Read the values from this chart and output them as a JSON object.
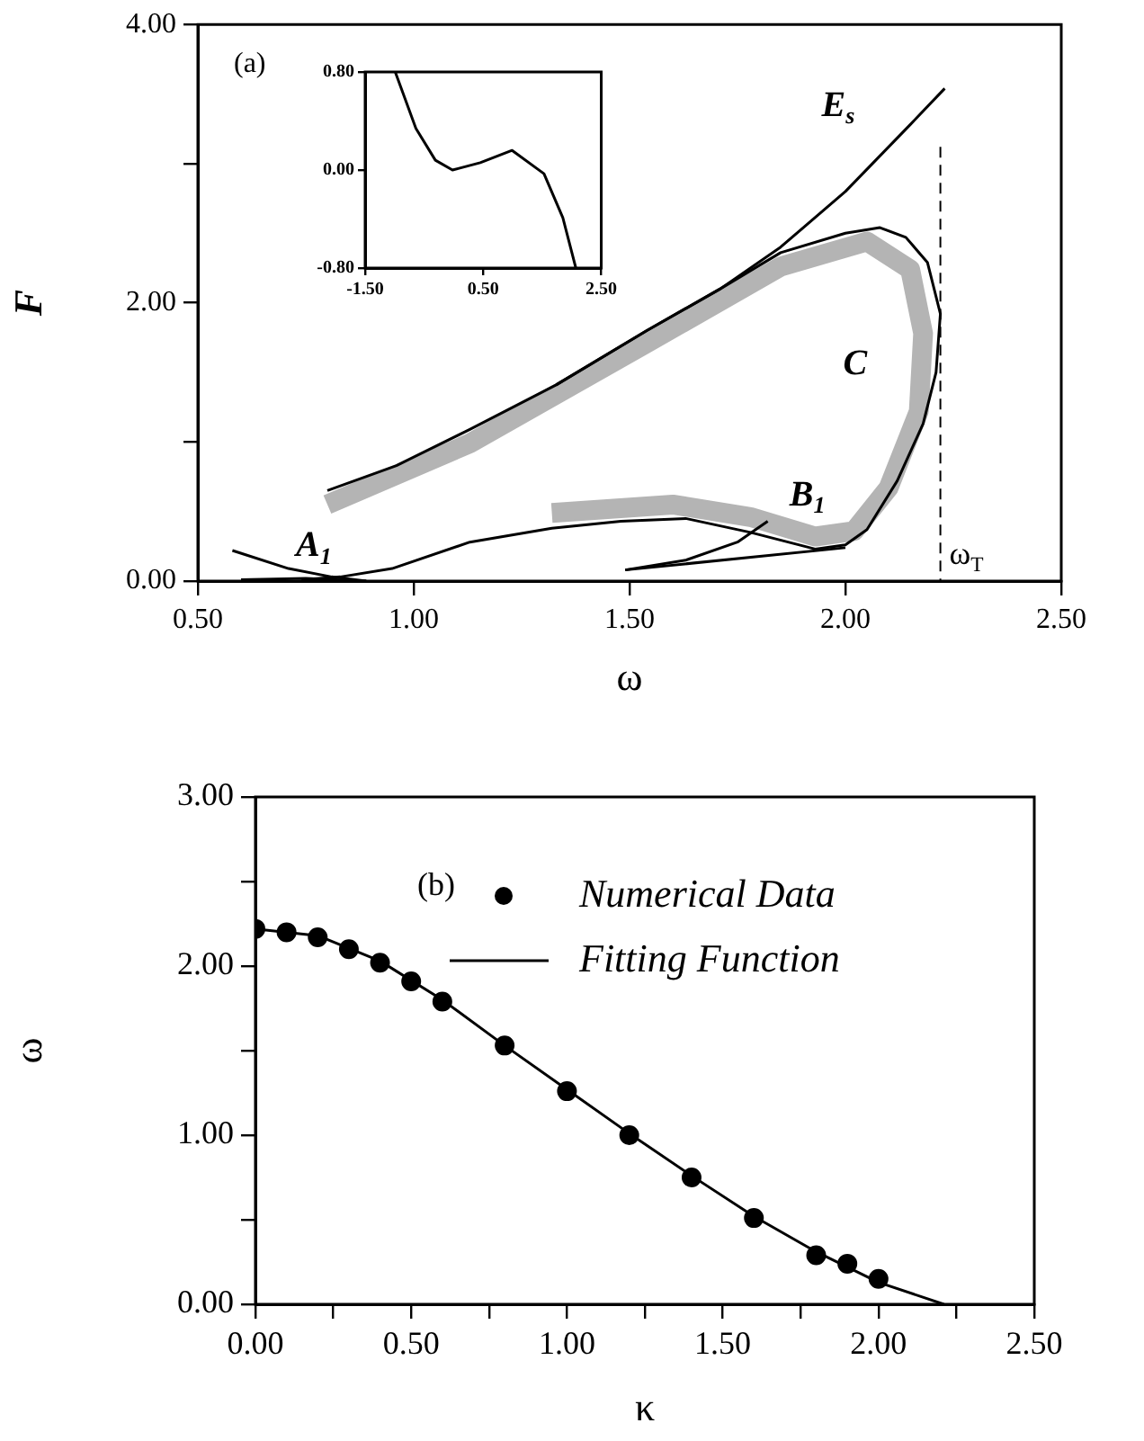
{
  "chart_data": [
    {
      "type": "line",
      "xlabel": "ω",
      "ylabel": "F",
      "xlim": [
        0.5,
        2.5
      ],
      "ylim": [
        0,
        4
      ],
      "grid": false,
      "line_style": "solid",
      "marker": "none",
      "xticks": [
        {
          "value": 0.5,
          "label": "0.50"
        },
        {
          "value": 1,
          "label": "1.00"
        },
        {
          "value": 1.5,
          "label": "1.50"
        },
        {
          "value": 2,
          "label": "2.00"
        },
        {
          "value": 2.5,
          "label": "2.50"
        }
      ],
      "yticks": [
        {
          "value": 0,
          "label": "0.00"
        },
        {
          "value": 1,
          "label": null
        },
        {
          "value": 2,
          "label": "2.00"
        },
        {
          "value": 3,
          "label": null
        },
        {
          "value": 4,
          "label": "4.00"
        }
      ],
      "series": [
        {
          "color": "#b4b4b4",
          "x": [
            0.8,
            1.13,
            1.54,
            1.85,
            2.05,
            2.15,
            2.18,
            2.17,
            2.1,
            2.02,
            1.93,
            1.78,
            1.6,
            1.32
          ],
          "values": [
            0.55,
            0.99,
            1.71,
            2.26,
            2.44,
            2.24,
            1.78,
            1.22,
            0.67,
            0.36,
            0.32,
            0.46,
            0.55,
            0.49
          ]
        },
        {
          "name": "C",
          "color": "#000000",
          "x": [
            0.8,
            0.96,
            1.13,
            1.33,
            1.54,
            1.71,
            1.85,
            2.0,
            2.08,
            2.14,
            2.19,
            2.22,
            2.21,
            2.18,
            2.12,
            2.05,
            2.0,
            1.93,
            1.78,
            1.63,
            1.48,
            1.32,
            1.13,
            0.95,
            0.83,
            0.74
          ],
          "values": [
            0.65,
            0.83,
            1.09,
            1.41,
            1.8,
            2.1,
            2.36,
            2.5,
            2.54,
            2.47,
            2.29,
            1.92,
            1.5,
            1.13,
            0.72,
            0.37,
            0.26,
            0.23,
            0.35,
            0.45,
            0.43,
            0.38,
            0.28,
            0.09,
            0.03,
            0.01
          ]
        },
        {
          "name": "E$_{s}$",
          "color": "#000000",
          "x": [
            1.33,
            1.54,
            1.71,
            1.85,
            2.0,
            2.15,
            2.23
          ],
          "values": [
            1.41,
            1.8,
            2.1,
            2.4,
            2.8,
            3.28,
            3.54
          ]
        },
        {
          "name": "A$_{1}$",
          "color": "#000000",
          "x": [
            0.58,
            0.71,
            0.81,
            0.89
          ],
          "values": [
            0.22,
            0.09,
            0.03,
            0.0
          ]
        },
        {
          "color": "#000000",
          "x": [
            0.6,
            0.75,
            0.89
          ],
          "values": [
            0.01,
            0.02,
            0.0
          ]
        },
        {
          "color": "#000000",
          "x": [
            1.49,
            2.0
          ],
          "values": [
            0.08,
            0.24
          ]
        },
        {
          "name": "B$_{1}$",
          "color": "#000000",
          "x": [
            1.49,
            1.63,
            1.75,
            1.82
          ],
          "values": [
            0.08,
            0.15,
            0.28,
            0.43
          ]
        }
      ],
      "ref_lines": [
        {
          "axis": "x",
          "value": 2.22,
          "label": "ω$_{T}$",
          "line_style": "dashed",
          "color": "#000000"
        }
      ],
      "annotations": [
        "(a)"
      ]
    },
    {
      "type": "line",
      "xlim": [
        -1.5,
        2.5
      ],
      "ylim": [
        -0.8,
        0.8
      ],
      "grid": false,
      "marker": "none",
      "line_style": "solid",
      "xticks": [
        {
          "value": -1.5,
          "label": "-1.50"
        },
        {
          "value": 0.5,
          "label": "0.50"
        },
        {
          "value": 2.5,
          "label": "2.50"
        }
      ],
      "yticks": [
        {
          "value": -0.8,
          "label": "-0.80"
        },
        {
          "value": 0,
          "label": "0.00"
        },
        {
          "value": 0.8,
          "label": "0.80"
        }
      ],
      "series": [
        {
          "color": "#000000",
          "x": [
            -0.99,
            -0.64,
            -0.31,
            -0.02,
            0.45,
            0.99,
            1.53,
            1.85,
            2.07
          ],
          "values": [
            0.8,
            0.34,
            0.08,
            0.0,
            0.06,
            0.16,
            -0.03,
            -0.39,
            -0.8
          ]
        }
      ]
    },
    {
      "type": "line",
      "xlabel": "κ",
      "ylabel": "ω",
      "xlim": [
        0,
        2.5
      ],
      "ylim": [
        0,
        3
      ],
      "grid": false,
      "legend": "top right",
      "line_style": "solid",
      "xticks": [
        {
          "value": 0,
          "label": "0.00"
        },
        {
          "value": 0.25,
          "label": null
        },
        {
          "value": 0.5,
          "label": "0.50"
        },
        {
          "value": 0.75,
          "label": null
        },
        {
          "value": 1,
          "label": "1.00"
        },
        {
          "value": 1.25,
          "label": null
        },
        {
          "value": 1.5,
          "label": "1.50"
        },
        {
          "value": 1.75,
          "label": null
        },
        {
          "value": 2,
          "label": "2.00"
        },
        {
          "value": 2.25,
          "label": null
        },
        {
          "value": 2.5,
          "label": "2.50"
        }
      ],
      "yticks": [
        {
          "value": 0,
          "label": "0.00"
        },
        {
          "value": 0.5,
          "label": null
        },
        {
          "value": 1,
          "label": "1.00"
        },
        {
          "value": 1.5,
          "label": null
        },
        {
          "value": 2,
          "label": "2.00"
        },
        {
          "value": 2.5,
          "label": null
        },
        {
          "value": 3,
          "label": "3.00"
        }
      ],
      "series": [
        {
          "name": "Numerical Data",
          "type": "scatter",
          "marker": "circle",
          "color": "#000000",
          "x": [
            0,
            0.1,
            0.2,
            0.3,
            0.4,
            0.5,
            0.6,
            0.8,
            1.0,
            1.2,
            1.4,
            1.6,
            1.8,
            1.9,
            2.0
          ],
          "values": [
            2.22,
            2.2,
            2.17,
            2.1,
            2.02,
            1.91,
            1.79,
            1.53,
            1.26,
            1.0,
            0.75,
            0.51,
            0.29,
            0.24,
            0.15
          ]
        },
        {
          "name": "Fitting Function",
          "marker": "none",
          "color": "#000000",
          "x": [
            0,
            0.2,
            0.4,
            0.6,
            0.8,
            1.0,
            1.2,
            1.4,
            1.6,
            1.8,
            2.0,
            2.21
          ],
          "values": [
            2.22,
            2.18,
            2.03,
            1.8,
            1.53,
            1.27,
            1.01,
            0.76,
            0.52,
            0.31,
            0.13,
            0
          ]
        }
      ],
      "annotations": [
        "(b)"
      ]
    }
  ]
}
